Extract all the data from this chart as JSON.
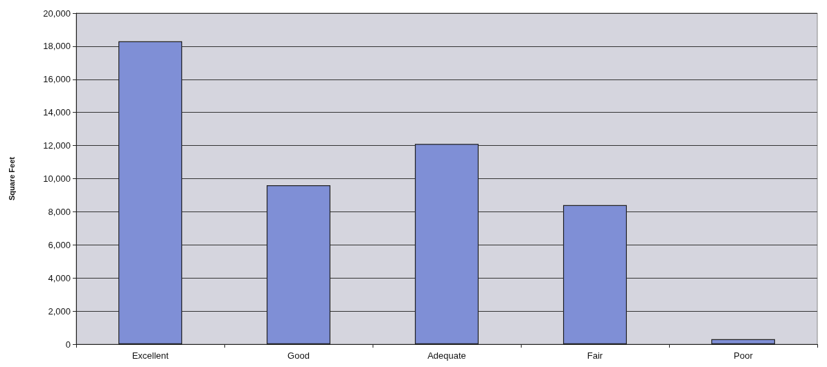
{
  "chart_data": {
    "type": "bar",
    "ylabel": "Square Feet",
    "categories": [
      "Excellent",
      "Good",
      "Adequate",
      "Fair",
      "Poor"
    ],
    "values": [
      18300,
      9600,
      12100,
      8400,
      300
    ],
    "color": "#7f8fd6",
    "ylim": [
      0,
      20000
    ],
    "yticks": [
      0,
      {
        "value": 2000,
        "label": "2,000"
      },
      {
        "value": 4000,
        "label": "4,000"
      },
      {
        "value": 6000,
        "label": "6,000"
      },
      {
        "value": 8000,
        "label": "8,000"
      },
      {
        "value": 10000,
        "label": "10,000"
      },
      {
        "value": 12000,
        "label": "12,000"
      },
      {
        "value": 14000,
        "label": "14,000"
      },
      {
        "value": 16000,
        "label": "16,000"
      },
      {
        "value": 18000,
        "label": "18,000"
      },
      {
        "value": 20000,
        "label": "20,000"
      }
    ],
    "grid": "y"
  }
}
